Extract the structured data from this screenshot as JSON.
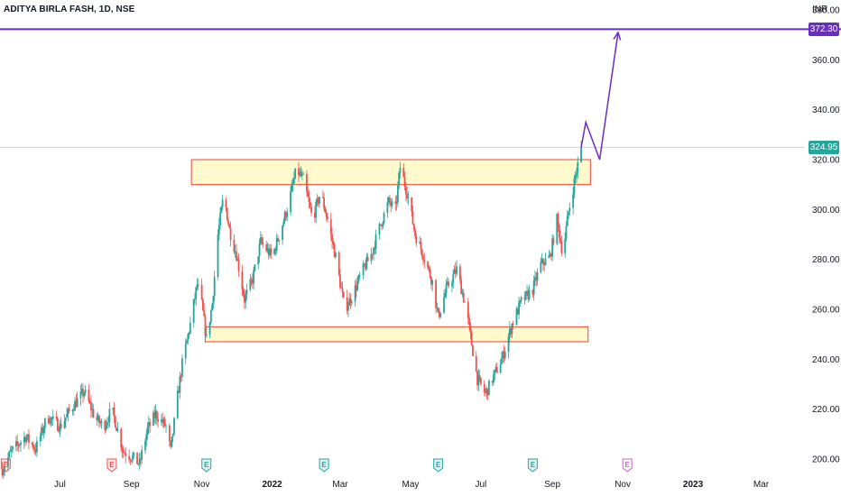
{
  "header": {
    "symbol_title": "ADITYA BIRLA FASH, 1D, NSE",
    "currency": "INR"
  },
  "colors": {
    "up": "#26a69a",
    "down": "#ef5350",
    "target_line": "#6a2dc2",
    "last_price_line": "#b2dfdb",
    "zone_fill": "#fff9c4",
    "zone_border": "#f44336",
    "event_e_earnings": "#ef5350",
    "event_e_dividend": "#26a69a",
    "event_e_upcoming": "#ba68c8"
  },
  "price_labels": {
    "target": "372.30",
    "last": "324.95"
  },
  "events": [
    {
      "id": "earnings-1",
      "label": "E",
      "date": "2021-05-15",
      "kind": "earnings"
    },
    {
      "id": "earnings-2",
      "label": "E",
      "date": "2021-08-15",
      "kind": "earnings"
    },
    {
      "id": "dividend-1",
      "label": "E",
      "date": "2021-11-05",
      "kind": "dividend"
    },
    {
      "id": "dividend-2",
      "label": "E",
      "date": "2022-02-15",
      "kind": "dividend"
    },
    {
      "id": "dividend-3",
      "label": "E",
      "date": "2022-05-25",
      "kind": "dividend"
    },
    {
      "id": "dividend-4",
      "label": "E",
      "date": "2022-08-15",
      "kind": "dividend"
    },
    {
      "id": "upcoming-1",
      "label": "E",
      "date": "2022-11-05",
      "kind": "upcoming"
    }
  ],
  "chart_data": {
    "type": "candlestick",
    "title": "ADITYA BIRLA FASH, 1D, NSE",
    "x_axis": {
      "tick_labels": [
        "Jul",
        "Sep",
        "Nov",
        "2022",
        "Mar",
        "May",
        "Jul",
        "Sep",
        "Nov",
        "2023",
        "Mar"
      ],
      "tick_dates": [
        "2021-07-01",
        "2021-09-01",
        "2021-11-01",
        "2022-01-01",
        "2022-03-01",
        "2022-05-01",
        "2022-07-01",
        "2022-09-01",
        "2022-11-01",
        "2023-01-01",
        "2023-03-01"
      ],
      "range": [
        "2021-05-10",
        "2023-04-08"
      ]
    },
    "y_axis": {
      "tick_labels": [
        "200.00",
        "220.00",
        "240.00",
        "260.00",
        "280.00",
        "300.00",
        "320.00",
        "340.00",
        "360.00",
        "380.00"
      ],
      "range": [
        196,
        384
      ],
      "unit": "INR"
    },
    "grid": false,
    "series": [
      {
        "kind": "price-approx",
        "points": [
          [
            "2021-05-12",
            196
          ],
          [
            "2021-05-20",
            203
          ],
          [
            "2021-06-01",
            209
          ],
          [
            "2021-06-10",
            204
          ],
          [
            "2021-06-20",
            217
          ],
          [
            "2021-07-01",
            213
          ],
          [
            "2021-07-12",
            221
          ],
          [
            "2021-07-22",
            227
          ],
          [
            "2021-08-01",
            216
          ],
          [
            "2021-08-08",
            213
          ],
          [
            "2021-08-15",
            220
          ],
          [
            "2021-08-25",
            203
          ],
          [
            "2021-09-01",
            201
          ],
          [
            "2021-09-08",
            198
          ],
          [
            "2021-09-15",
            212
          ],
          [
            "2021-09-22",
            218
          ],
          [
            "2021-10-01",
            213
          ],
          [
            "2021-10-05",
            203
          ],
          [
            "2021-10-10",
            222
          ],
          [
            "2021-10-15",
            238
          ],
          [
            "2021-10-22",
            254
          ],
          [
            "2021-10-28",
            270
          ],
          [
            "2021-11-01",
            262
          ],
          [
            "2021-11-05",
            248
          ],
          [
            "2021-11-10",
            262
          ],
          [
            "2021-11-15",
            290
          ],
          [
            "2021-11-20",
            306
          ],
          [
            "2021-11-25",
            292
          ],
          [
            "2021-12-01",
            282
          ],
          [
            "2021-12-08",
            264
          ],
          [
            "2021-12-15",
            272
          ],
          [
            "2021-12-22",
            287
          ],
          [
            "2022-01-01",
            281
          ],
          [
            "2022-01-08",
            291
          ],
          [
            "2022-01-15",
            302
          ],
          [
            "2022-01-22",
            316
          ],
          [
            "2022-01-28",
            312
          ],
          [
            "2022-02-05",
            296
          ],
          [
            "2022-02-12",
            307
          ],
          [
            "2022-02-18",
            296
          ],
          [
            "2022-02-25",
            281
          ],
          [
            "2022-03-05",
            260
          ],
          [
            "2022-03-12",
            266
          ],
          [
            "2022-03-20",
            275
          ],
          [
            "2022-03-28",
            282
          ],
          [
            "2022-04-05",
            294
          ],
          [
            "2022-04-12",
            303
          ],
          [
            "2022-04-18",
            300
          ],
          [
            "2022-04-22",
            317
          ],
          [
            "2022-04-28",
            307
          ],
          [
            "2022-05-05",
            290
          ],
          [
            "2022-05-12",
            282
          ],
          [
            "2022-05-20",
            271
          ],
          [
            "2022-05-25",
            257
          ],
          [
            "2022-06-01",
            268
          ],
          [
            "2022-06-10",
            276
          ],
          [
            "2022-06-18",
            261
          ],
          [
            "2022-06-22",
            249
          ],
          [
            "2022-06-28",
            232
          ],
          [
            "2022-07-05",
            226
          ],
          [
            "2022-07-12",
            233
          ],
          [
            "2022-07-20",
            241
          ],
          [
            "2022-07-28",
            254
          ],
          [
            "2022-08-05",
            263
          ],
          [
            "2022-08-15",
            268
          ],
          [
            "2022-08-22",
            278
          ],
          [
            "2022-08-30",
            281
          ],
          [
            "2022-09-05",
            296
          ],
          [
            "2022-09-10",
            282
          ],
          [
            "2022-09-15",
            299
          ],
          [
            "2022-09-20",
            311
          ],
          [
            "2022-09-26",
            324.95
          ]
        ]
      }
    ],
    "annotations": {
      "target_price": 372.3,
      "last_price": 324.95,
      "resistance_zone": {
        "x_start": "2021-10-23",
        "x_end": "2022-10-04",
        "y_low": 310,
        "y_high": 320
      },
      "support_zone": {
        "x_start": "2021-11-04",
        "x_end": "2022-10-02",
        "y_low": 247,
        "y_high": 253
      },
      "projection_path": [
        [
          "2022-09-26",
          324.95
        ],
        [
          "2022-09-30",
          335
        ],
        [
          "2022-10-12",
          320
        ],
        [
          "2022-10-28",
          371
        ]
      ]
    }
  }
}
